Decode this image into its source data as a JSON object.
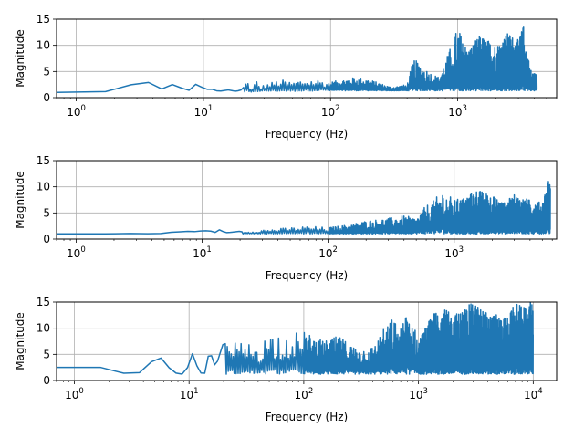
{
  "figure": {
    "background": "#ffffff",
    "series_color": "#1f77b4",
    "grid_color": "#b0b0b0"
  },
  "chart_data": [
    {
      "type": "line",
      "xlabel": "Frequency (Hz)",
      "ylabel": "Magnitude",
      "xscale": "log",
      "xlim": [
        0.7,
        6000
      ],
      "ylim": [
        0,
        15
      ],
      "xticks": [
        {
          "base": "10",
          "exp": "0"
        },
        {
          "base": "10",
          "exp": "1"
        },
        {
          "base": "10",
          "exp": "2"
        },
        {
          "base": "10",
          "exp": "3"
        }
      ],
      "xtick_values": [
        1,
        10,
        100,
        1000
      ],
      "yticks": [
        "0",
        "5",
        "10",
        "15"
      ],
      "ytick_values": [
        0,
        5,
        10,
        15
      ],
      "grid": true,
      "fmax": 4200,
      "series": [
        {
          "x": [
            0.7,
            1,
            2,
            3,
            4,
            5,
            6,
            7,
            8,
            9,
            10,
            11,
            12,
            13,
            14,
            15,
            16,
            17,
            18,
            20,
            22,
            24,
            26,
            28,
            30,
            35,
            40,
            50,
            60,
            80,
            100,
            150,
            200,
            300,
            400,
            450,
            500,
            600,
            700,
            800,
            1000,
            1200,
            1500,
            2000,
            2500,
            3000,
            3300,
            3500,
            3800,
            4200
          ],
          "y": [
            1.0,
            1.0,
            1.2,
            2.9,
            2.9,
            1.2,
            3.0,
            1.4,
            1.4,
            3.0,
            1.6,
            1.6,
            1.6,
            1.2,
            1.3,
            1.4,
            1.5,
            1.3,
            1.2,
            1.5,
            3.5,
            1.5,
            3.5,
            2.0,
            2.5,
            3.0,
            3.5,
            3.0,
            3.5,
            3.5,
            3.0,
            3.8,
            3.5,
            2.0,
            2.5,
            7.5,
            6.5,
            5.0,
            4.0,
            7.0,
            13.5,
            9.0,
            12.0,
            10.0,
            12.5,
            11.0,
            14.0,
            9.0,
            5.0,
            4.5
          ],
          "floor": [
            1.0,
            1.0,
            1.0,
            1.0,
            1.0,
            1.0,
            1.0,
            1.0,
            1.0,
            1.0,
            1.0,
            1.0,
            1.0,
            1.0,
            1.0,
            1.0,
            1.0,
            1.0,
            1.0,
            1.0,
            1.1,
            1.0,
            1.1,
            1.2,
            1.2,
            1.2,
            1.2,
            1.2,
            1.2,
            1.3,
            1.3,
            1.3,
            1.3,
            1.3,
            1.3,
            1.3,
            1.3,
            1.3,
            1.3,
            1.3,
            1.3,
            1.3,
            1.3,
            1.3,
            1.3,
            1.3,
            1.3,
            1.3,
            1.3,
            1.3
          ]
        }
      ]
    },
    {
      "type": "line",
      "xlabel": "Frequency (Hz)",
      "ylabel": "Magnitude",
      "xscale": "log",
      "xlim": [
        0.7,
        6500
      ],
      "ylim": [
        0,
        15
      ],
      "xticks": [
        {
          "base": "10",
          "exp": "0"
        },
        {
          "base": "10",
          "exp": "1"
        },
        {
          "base": "10",
          "exp": "2"
        },
        {
          "base": "10",
          "exp": "3"
        }
      ],
      "xtick_values": [
        1,
        10,
        100,
        1000
      ],
      "yticks": [
        "0",
        "5",
        "10",
        "15"
      ],
      "ytick_values": [
        0,
        5,
        10,
        15
      ],
      "grid": true,
      "fmax": 5800,
      "series": [
        {
          "x": [
            0.7,
            1,
            2,
            3,
            4,
            5,
            6,
            7,
            8,
            9,
            10,
            11,
            12,
            13,
            14,
            15,
            17,
            20,
            25,
            30,
            40,
            50,
            70,
            100,
            150,
            200,
            300,
            400,
            500,
            600,
            700,
            800,
            1000,
            1200,
            1500,
            2000,
            2500,
            3000,
            4000,
            5000,
            5500,
            5800
          ],
          "y": [
            1.0,
            1.0,
            1.0,
            1.1,
            1.0,
            1.1,
            1.4,
            1.4,
            1.5,
            1.4,
            1.6,
            1.6,
            1.5,
            1.2,
            2.0,
            1.2,
            1.3,
            1.5,
            1.5,
            1.8,
            2.0,
            2.2,
            2.5,
            2.2,
            2.8,
            3.5,
            4.0,
            4.5,
            4.0,
            6.5,
            7.5,
            9.5,
            7.5,
            8.0,
            9.5,
            8.5,
            7.0,
            8.5,
            7.5,
            7.0,
            11.5,
            11.0
          ],
          "floor": [
            1.0,
            1.0,
            1.0,
            1.0,
            1.0,
            1.0,
            1.0,
            1.0,
            1.0,
            1.0,
            1.0,
            1.0,
            1.0,
            1.0,
            1.0,
            1.0,
            1.0,
            1.0,
            1.0,
            1.0,
            1.0,
            1.0,
            1.0,
            1.0,
            1.0,
            1.0,
            1.0,
            1.0,
            1.0,
            1.0,
            1.0,
            1.0,
            1.0,
            1.0,
            1.0,
            1.0,
            1.0,
            1.0,
            1.0,
            1.0,
            1.0,
            1.0
          ]
        }
      ]
    },
    {
      "type": "line",
      "xlabel": "Frequency (Hz)",
      "ylabel": "Magnitude",
      "xscale": "log",
      "xlim": [
        0.7,
        16000
      ],
      "ylim": [
        0,
        15
      ],
      "xticks": [
        {
          "base": "10",
          "exp": "0"
        },
        {
          "base": "10",
          "exp": "1"
        },
        {
          "base": "10",
          "exp": "2"
        },
        {
          "base": "10",
          "exp": "3"
        },
        {
          "base": "10",
          "exp": "4"
        }
      ],
      "xtick_values": [
        1,
        10,
        100,
        1000,
        10000
      ],
      "yticks": [
        "0",
        "5",
        "10",
        "15"
      ],
      "ytick_values": [
        0,
        5,
        10,
        15
      ],
      "grid": true,
      "fmax": 10000,
      "series": [
        {
          "x": [
            0.7,
            1,
            2,
            3,
            4,
            5,
            6,
            7,
            8,
            9,
            10,
            11,
            12,
            13,
            14,
            15,
            17,
            20,
            25,
            30,
            40,
            50,
            70,
            100,
            150,
            200,
            300,
            400,
            500,
            600,
            700,
            800,
            1000,
            1500,
            2000,
            3000,
            4000,
            5000,
            6000,
            7000,
            8000,
            9000,
            10000
          ],
          "y": [
            2.5,
            2.5,
            2.5,
            1.0,
            1.7,
            4.3,
            4.3,
            1.7,
            1.3,
            1.2,
            3.0,
            6.0,
            1.5,
            1.4,
            1.4,
            6.0,
            2.5,
            7.3,
            7.3,
            7.3,
            7.3,
            9.0,
            9.3,
            9.3,
            7.5,
            8.5,
            6.0,
            6.5,
            10.0,
            12.0,
            10.0,
            14.0,
            8.0,
            14.5,
            12.5,
            15.0,
            13.0,
            12.5,
            12.0,
            15.0,
            14.0,
            15.0,
            15.0
          ],
          "floor": [
            2.5,
            2.5,
            2.5,
            1.0,
            1.5,
            4.3,
            4.3,
            1.5,
            1.2,
            1.2,
            1.2,
            1.2,
            1.2,
            1.2,
            1.2,
            1.2,
            1.2,
            1.2,
            1.2,
            1.2,
            1.2,
            1.2,
            1.2,
            1.2,
            1.2,
            1.2,
            1.2,
            1.2,
            1.2,
            1.2,
            1.2,
            1.2,
            1.2,
            1.2,
            1.2,
            1.2,
            1.2,
            1.2,
            1.2,
            1.2,
            1.2,
            1.2,
            1.2
          ]
        }
      ]
    }
  ]
}
